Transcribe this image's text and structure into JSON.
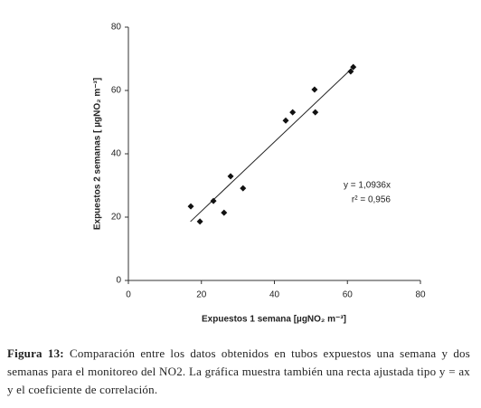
{
  "chart_data": {
    "type": "scatter",
    "x_label": "Expuestos 1 semana [µgNO₂ m⁻³]",
    "y_label": "Expuestos 2 semanas [ µgNO₂ m⁻³]",
    "x": [
      17.1,
      19.6,
      23.3,
      26.2,
      28,
      31.4,
      43.1,
      45,
      51,
      51.2,
      60.9,
      61.6
    ],
    "values": [
      23.4,
      18.6,
      25.1,
      21.4,
      32.9,
      29.1,
      50.5,
      53.1,
      60.3,
      53.1,
      66,
      67.4
    ],
    "color": "#111111",
    "xlim": [
      0,
      80
    ],
    "xticks": [
      0,
      20,
      40,
      60,
      80
    ],
    "ylim": [
      0,
      80
    ],
    "yticks": [
      0,
      20,
      40,
      60,
      80
    ],
    "trendline": {
      "slope": 1.0936,
      "xlim": [
        17,
        62
      ]
    },
    "annotations": [
      "y = 1,0936x",
      "r² = 0,956"
    ]
  },
  "caption": {
    "label": "Figura 13:",
    "text": "Comparación entre los datos obtenidos en tubos expuestos una semana y dos semanas para el monitoreo del NO2. La gráfica muestra también una recta ajustada tipo y = ax  y el coeficiente de correlación."
  }
}
